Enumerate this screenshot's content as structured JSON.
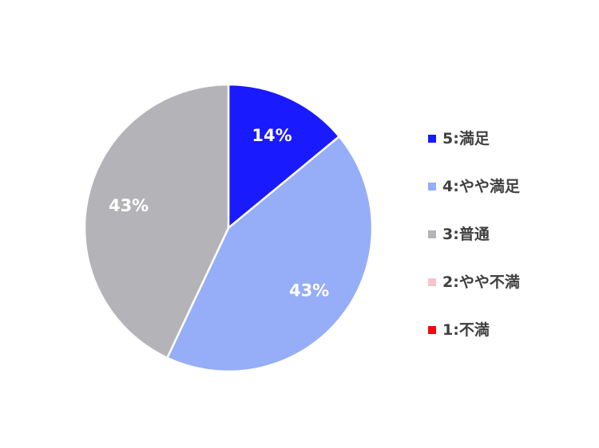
{
  "chart_data": {
    "type": "pie",
    "start_angle_deg": 0,
    "direction": "clockwise",
    "slices": [
      {
        "name": "5:満足",
        "value": 14,
        "label": "14%",
        "color": "#1a1aff"
      },
      {
        "name": "4:やや満足",
        "value": 43,
        "label": "43%",
        "color": "#96adf7"
      },
      {
        "name": "3:普通",
        "value": 43,
        "label": "43%",
        "color": "#b4b4b8"
      },
      {
        "name": "2:やや不満",
        "value": 0,
        "label": "",
        "color": "#f4c6cc"
      },
      {
        "name": "1:不満",
        "value": 0,
        "label": "",
        "color": "#f00a0a"
      }
    ],
    "legend": {
      "position": "right",
      "entries": [
        {
          "label": "5:満足",
          "color": "#1a1aff"
        },
        {
          "label": "4:やや満足",
          "color": "#96adf7"
        },
        {
          "label": "3:普通",
          "color": "#b4b4b8"
        },
        {
          "label": "2:やや不満",
          "color": "#f4c6cc"
        },
        {
          "label": "1:不満",
          "color": "#f00a0a"
        }
      ]
    }
  }
}
